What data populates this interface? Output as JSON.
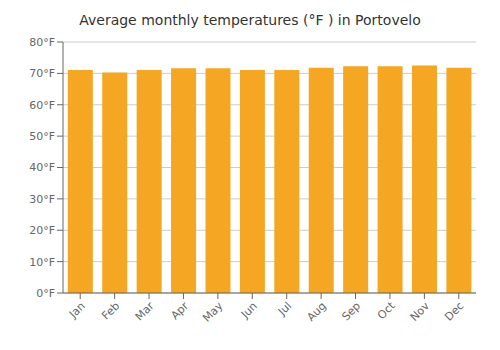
{
  "chart_data": {
    "type": "bar",
    "title": "Average monthly temperatures (°F ) in Portovelo",
    "categories": [
      "Jan",
      "Feb",
      "Mar",
      "Apr",
      "May",
      "Jun",
      "Jul",
      "Aug",
      "Sep",
      "Oct",
      "Nov",
      "Dec"
    ],
    "values": [
      71.1,
      70.3,
      71.1,
      71.6,
      71.6,
      71.1,
      71.1,
      71.8,
      72.3,
      72.3,
      72.5,
      71.8
    ],
    "color": "#F5A623",
    "ylim": [
      0,
      80
    ],
    "yticks": [
      {
        "value": 0,
        "label": "0°F"
      },
      {
        "value": 10,
        "label": "10°F"
      },
      {
        "value": 20,
        "label": "20°F"
      },
      {
        "value": 30,
        "label": "30°F"
      },
      {
        "value": 40,
        "label": "40°F"
      },
      {
        "value": 50,
        "label": "50°F"
      },
      {
        "value": 60,
        "label": "60°F"
      },
      {
        "value": 70,
        "label": "70°F"
      },
      {
        "value": 80,
        "label": "80°F"
      }
    ],
    "grid": true
  }
}
